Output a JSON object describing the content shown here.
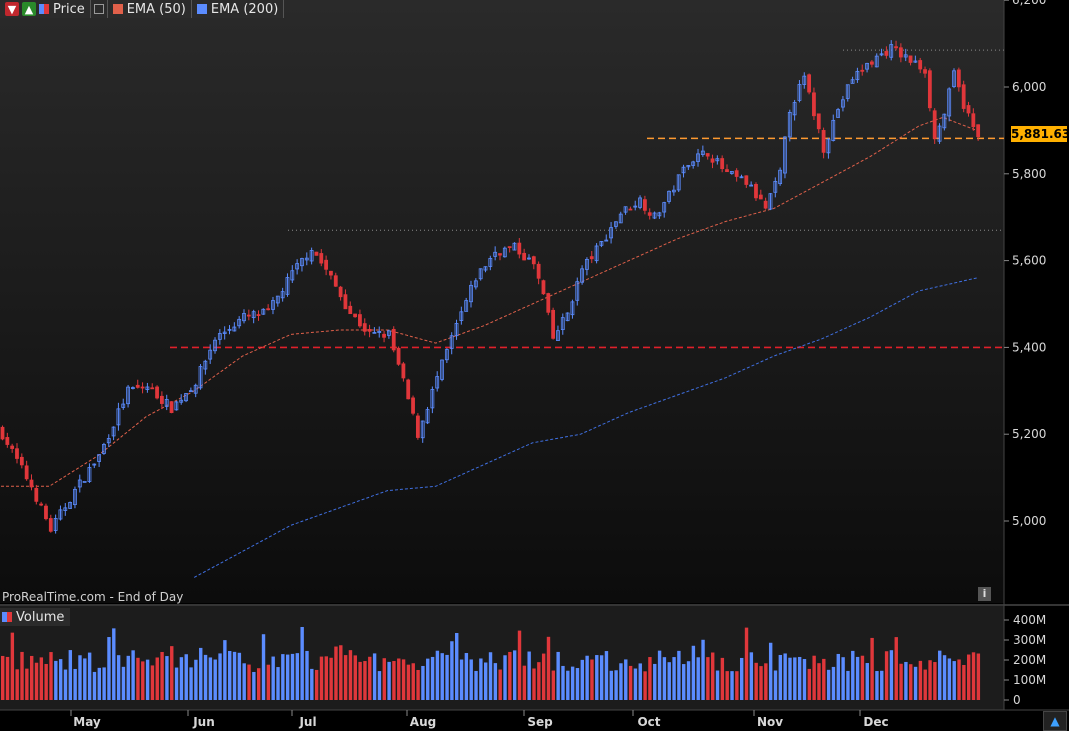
{
  "legend": {
    "price_label": "Price",
    "ema50_label": "EMA (50)",
    "ema200_label": "EMA (200)",
    "volume_label": "Volume"
  },
  "footer": {
    "source": "ProRealTime.com - End of Day"
  },
  "last_price_label": "5,881.63",
  "colors": {
    "up": "#5b8cff",
    "down": "#e0373b",
    "ema50": "#e0604a",
    "ema200": "#3f6fe0",
    "support": "#e0202a",
    "resistance_last": "#ff9a30"
  },
  "chart_data": {
    "type": "candlestick",
    "x_ticks": [
      "May",
      "Jun",
      "Jul",
      "Aug",
      "Sep",
      "Oct",
      "Nov",
      "Dec"
    ],
    "y_ticks": [
      "6,200",
      "6,000",
      "5,800",
      "5,600",
      "5,400",
      "5,200",
      "5,000"
    ],
    "y_tick_values": [
      6200,
      6000,
      5800,
      5600,
      5400,
      5200,
      5000
    ],
    "ylim": [
      4880,
      6200
    ],
    "volume_ticks": [
      "400M",
      "300M",
      "200M",
      "100M",
      "0"
    ],
    "volume_tick_values": [
      400,
      300,
      200,
      100,
      0
    ],
    "horizontal_lines": [
      {
        "value": 5400,
        "style": "dashed",
        "color": "red"
      },
      {
        "value": 5881.63,
        "style": "dashed",
        "color": "orange"
      },
      {
        "value": 5670,
        "style": "dotted",
        "color": "gray"
      },
      {
        "value": 6085,
        "style": "dotted",
        "color": "gray"
      }
    ],
    "close_anchors": [
      [
        0,
        5200
      ],
      [
        6,
        5080
      ],
      [
        10,
        4980
      ],
      [
        15,
        5070
      ],
      [
        20,
        5150
      ],
      [
        26,
        5300
      ],
      [
        30,
        5310
      ],
      [
        35,
        5260
      ],
      [
        40,
        5320
      ],
      [
        44,
        5420
      ],
      [
        50,
        5470
      ],
      [
        55,
        5480
      ],
      [
        60,
        5570
      ],
      [
        64,
        5630
      ],
      [
        68,
        5560
      ],
      [
        72,
        5480
      ],
      [
        76,
        5430
      ],
      [
        80,
        5430
      ],
      [
        83,
        5320
      ],
      [
        86,
        5200
      ],
      [
        90,
        5330
      ],
      [
        94,
        5450
      ],
      [
        98,
        5560
      ],
      [
        102,
        5620
      ],
      [
        106,
        5630
      ],
      [
        110,
        5590
      ],
      [
        112,
        5520
      ],
      [
        114,
        5420
      ],
      [
        117,
        5480
      ],
      [
        120,
        5580
      ],
      [
        124,
        5640
      ],
      [
        128,
        5710
      ],
      [
        132,
        5740
      ],
      [
        135,
        5700
      ],
      [
        138,
        5750
      ],
      [
        142,
        5830
      ],
      [
        146,
        5850
      ],
      [
        150,
        5800
      ],
      [
        154,
        5780
      ],
      [
        158,
        5720
      ],
      [
        161,
        5800
      ],
      [
        163,
        5950
      ],
      [
        166,
        6020
      ],
      [
        168,
        5940
      ],
      [
        170,
        5860
      ],
      [
        173,
        5950
      ],
      [
        176,
        6020
      ],
      [
        180,
        6060
      ],
      [
        184,
        6090
      ],
      [
        188,
        6060
      ],
      [
        191,
        6040
      ],
      [
        193,
        5880
      ],
      [
        195,
        5940
      ],
      [
        197,
        6030
      ],
      [
        199,
        5960
      ],
      [
        202,
        5880
      ]
    ],
    "ema50_anchors": [
      [
        0,
        5080
      ],
      [
        10,
        5080
      ],
      [
        20,
        5150
      ],
      [
        30,
        5240
      ],
      [
        40,
        5300
      ],
      [
        50,
        5380
      ],
      [
        60,
        5430
      ],
      [
        70,
        5440
      ],
      [
        80,
        5440
      ],
      [
        90,
        5410
      ],
      [
        100,
        5450
      ],
      [
        110,
        5500
      ],
      [
        120,
        5550
      ],
      [
        130,
        5600
      ],
      [
        140,
        5650
      ],
      [
        150,
        5690
      ],
      [
        160,
        5720
      ],
      [
        170,
        5780
      ],
      [
        180,
        5840
      ],
      [
        190,
        5910
      ],
      [
        195,
        5930
      ],
      [
        202,
        5900
      ]
    ],
    "ema200_anchors": [
      [
        40,
        4870
      ],
      [
        50,
        4930
      ],
      [
        60,
        4990
      ],
      [
        70,
        5030
      ],
      [
        80,
        5070
      ],
      [
        90,
        5080
      ],
      [
        100,
        5130
      ],
      [
        110,
        5180
      ],
      [
        120,
        5200
      ],
      [
        130,
        5250
      ],
      [
        140,
        5290
      ],
      [
        150,
        5330
      ],
      [
        160,
        5380
      ],
      [
        170,
        5420
      ],
      [
        180,
        5470
      ],
      [
        190,
        5530
      ],
      [
        202,
        5560
      ]
    ]
  }
}
